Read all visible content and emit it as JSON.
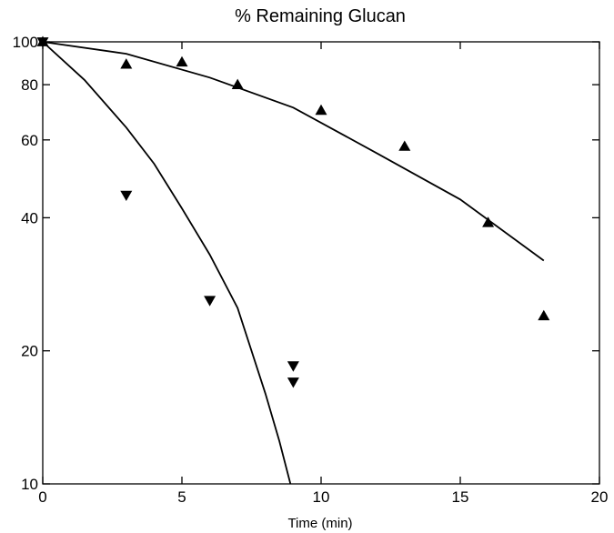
{
  "chart_data": {
    "type": "scatter",
    "title": "% Remaining Glucan",
    "xlabel": "Time (min)",
    "ylabel": "",
    "xlim": [
      0,
      20
    ],
    "ylim": [
      10,
      100
    ],
    "yscale": "log",
    "grid": false,
    "x_ticks": [
      "0",
      "5",
      "10",
      "15",
      "20"
    ],
    "y_ticks": [
      "10",
      "20",
      "40",
      "60",
      "80",
      "100"
    ],
    "series": [
      {
        "marker": "triangle-up",
        "color": "#000000",
        "points": [
          {
            "x": 0,
            "y": 100
          },
          {
            "x": 3,
            "y": 89
          },
          {
            "x": 5,
            "y": 90
          },
          {
            "x": 7,
            "y": 80
          },
          {
            "x": 10,
            "y": 70
          },
          {
            "x": 13,
            "y": 58
          },
          {
            "x": 16,
            "y": 39
          },
          {
            "x": 18,
            "y": 24
          }
        ],
        "fit": [
          {
            "x": 0,
            "y": 100
          },
          {
            "x": 3,
            "y": 94
          },
          {
            "x": 6,
            "y": 83
          },
          {
            "x": 9,
            "y": 71
          },
          {
            "x": 12,
            "y": 56
          },
          {
            "x": 15,
            "y": 44
          },
          {
            "x": 18,
            "y": 32
          }
        ]
      },
      {
        "marker": "triangle-down",
        "color": "#000000",
        "points": [
          {
            "x": 0,
            "y": 100
          },
          {
            "x": 3,
            "y": 45
          },
          {
            "x": 6,
            "y": 26
          },
          {
            "x": 9,
            "y": 18.5
          },
          {
            "x": 9,
            "y": 17
          }
        ],
        "fit": [
          {
            "x": 0,
            "y": 100
          },
          {
            "x": 1.5,
            "y": 82
          },
          {
            "x": 3,
            "y": 64
          },
          {
            "x": 4,
            "y": 53
          },
          {
            "x": 5,
            "y": 42
          },
          {
            "x": 6,
            "y": 33
          },
          {
            "x": 7,
            "y": 25
          },
          {
            "x": 8,
            "y": 16
          },
          {
            "x": 8.5,
            "y": 12.5
          },
          {
            "x": 8.9,
            "y": 10
          }
        ]
      }
    ]
  }
}
